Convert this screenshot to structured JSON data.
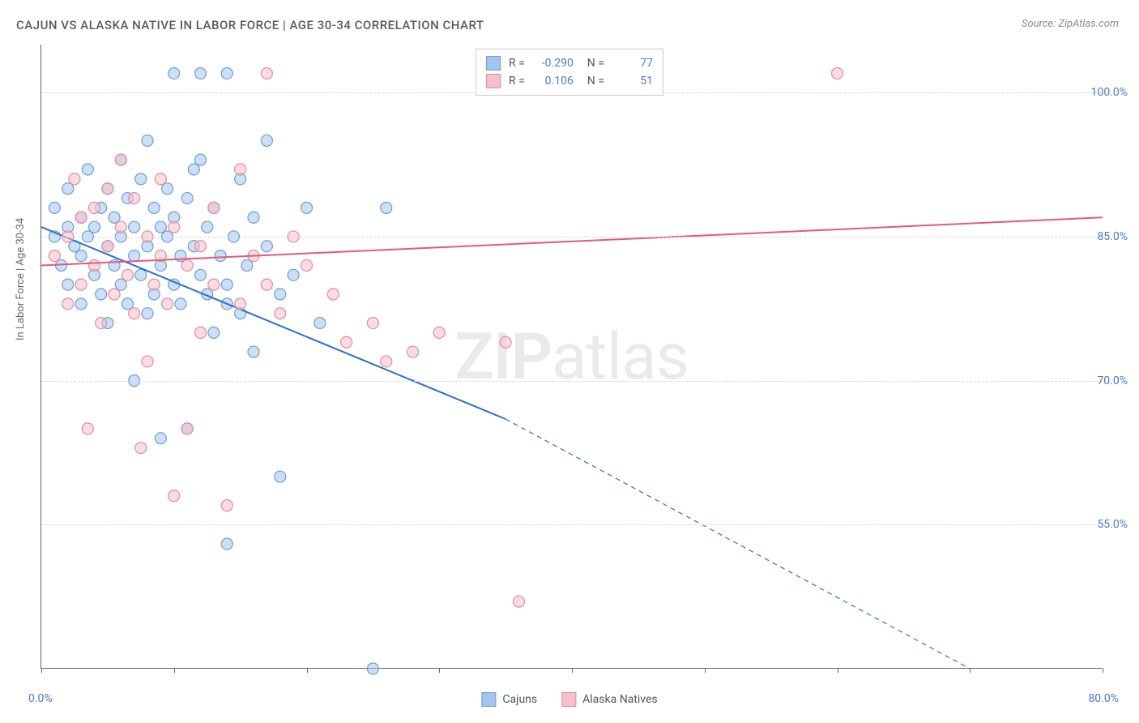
{
  "title": "CAJUN VS ALASKA NATIVE IN LABOR FORCE | AGE 30-34 CORRELATION CHART",
  "source": "Source: ZipAtlas.com",
  "ylabel": "In Labor Force | Age 30-34",
  "watermark_bold": "ZIP",
  "watermark_rest": "atlas",
  "chart": {
    "type": "scatter-with-trend",
    "xlim": [
      0,
      80
    ],
    "ylim": [
      40,
      105
    ],
    "x_ticks": [
      0,
      10,
      20,
      30,
      40,
      50,
      60,
      70,
      80
    ],
    "y_gridlines": [
      55,
      70,
      85,
      100
    ],
    "y_tick_labels": [
      "55.0%",
      "70.0%",
      "85.0%",
      "100.0%"
    ],
    "x_tick_labels": {
      "left": "0.0%",
      "right": "80.0%"
    },
    "background_color": "#ffffff",
    "grid_color": "#d8d8d8",
    "axis_color": "#666666",
    "label_color": "#4a7bc8",
    "marker_radius": 7,
    "marker_opacity": 0.55,
    "line_width": 2,
    "series": [
      {
        "name": "Cajuns",
        "color_fill": "#a3c5ed",
        "color_stroke": "#6a9fd8",
        "trend_color": "#2e6fc9",
        "R": "-0.290",
        "N": "77",
        "trend_start": {
          "x": 0,
          "y": 86
        },
        "trend_solid_end": {
          "x": 35,
          "y": 66
        },
        "trend_end": {
          "x": 70,
          "y": 40
        },
        "points": [
          [
            1,
            85
          ],
          [
            1,
            88
          ],
          [
            1.5,
            82
          ],
          [
            2,
            86
          ],
          [
            2,
            80
          ],
          [
            2,
            90
          ],
          [
            2.5,
            84
          ],
          [
            3,
            83
          ],
          [
            3,
            87
          ],
          [
            3,
            78
          ],
          [
            3.5,
            85
          ],
          [
            3.5,
            92
          ],
          [
            4,
            81
          ],
          [
            4,
            86
          ],
          [
            4.5,
            79
          ],
          [
            4.5,
            88
          ],
          [
            5,
            84
          ],
          [
            5,
            90
          ],
          [
            5,
            76
          ],
          [
            5.5,
            82
          ],
          [
            5.5,
            87
          ],
          [
            6,
            85
          ],
          [
            6,
            80
          ],
          [
            6,
            93
          ],
          [
            6.5,
            78
          ],
          [
            6.5,
            89
          ],
          [
            7,
            83
          ],
          [
            7,
            86
          ],
          [
            7,
            70
          ],
          [
            7.5,
            81
          ],
          [
            7.5,
            91
          ],
          [
            8,
            84
          ],
          [
            8,
            77
          ],
          [
            8,
            95
          ],
          [
            8.5,
            79
          ],
          [
            8.5,
            88
          ],
          [
            9,
            82
          ],
          [
            9,
            86
          ],
          [
            9,
            64
          ],
          [
            9.5,
            85
          ],
          [
            9.5,
            90
          ],
          [
            10,
            80
          ],
          [
            10,
            102
          ],
          [
            10,
            87
          ],
          [
            10.5,
            83
          ],
          [
            10.5,
            78
          ],
          [
            11,
            89
          ],
          [
            11,
            65
          ],
          [
            11.5,
            84
          ],
          [
            11.5,
            92
          ],
          [
            12,
            81
          ],
          [
            12,
            102
          ],
          [
            12.5,
            86
          ],
          [
            12.5,
            79
          ],
          [
            13,
            88
          ],
          [
            13,
            75
          ],
          [
            13.5,
            83
          ],
          [
            14,
            102
          ],
          [
            14,
            80
          ],
          [
            14,
            53
          ],
          [
            14.5,
            85
          ],
          [
            15,
            91
          ],
          [
            15,
            77
          ],
          [
            15.5,
            82
          ],
          [
            16,
            87
          ],
          [
            16,
            73
          ],
          [
            17,
            84
          ],
          [
            17,
            95
          ],
          [
            18,
            60
          ],
          [
            18,
            79
          ],
          [
            19,
            81
          ],
          [
            20,
            88
          ],
          [
            21,
            76
          ],
          [
            25,
            40
          ],
          [
            26,
            88
          ],
          [
            14,
            78
          ],
          [
            12,
            93
          ]
        ]
      },
      {
        "name": "Alaska Natives",
        "color_fill": "#f5c0cb",
        "color_stroke": "#e68a9e",
        "trend_color": "#e35a7a",
        "R": "0.106",
        "N": "51",
        "trend_start": {
          "x": 0,
          "y": 82
        },
        "trend_solid_end": {
          "x": 80,
          "y": 87
        },
        "trend_end": {
          "x": 80,
          "y": 87
        },
        "points": [
          [
            1,
            83
          ],
          [
            2,
            85
          ],
          [
            2,
            78
          ],
          [
            2.5,
            91
          ],
          [
            3,
            80
          ],
          [
            3,
            87
          ],
          [
            3.5,
            65
          ],
          [
            4,
            82
          ],
          [
            4,
            88
          ],
          [
            4.5,
            76
          ],
          [
            5,
            90
          ],
          [
            5,
            84
          ],
          [
            5.5,
            79
          ],
          [
            6,
            86
          ],
          [
            6,
            93
          ],
          [
            6.5,
            81
          ],
          [
            7,
            77
          ],
          [
            7,
            89
          ],
          [
            7.5,
            63
          ],
          [
            8,
            85
          ],
          [
            8,
            72
          ],
          [
            8.5,
            80
          ],
          [
            9,
            91
          ],
          [
            9,
            83
          ],
          [
            9.5,
            78
          ],
          [
            10,
            86
          ],
          [
            10,
            58
          ],
          [
            11,
            82
          ],
          [
            11,
            65
          ],
          [
            12,
            84
          ],
          [
            12,
            75
          ],
          [
            13,
            80
          ],
          [
            13,
            88
          ],
          [
            14,
            57
          ],
          [
            15,
            78
          ],
          [
            15,
            92
          ],
          [
            16,
            83
          ],
          [
            17,
            80
          ],
          [
            17,
            102
          ],
          [
            18,
            77
          ],
          [
            19,
            85
          ],
          [
            20,
            82
          ],
          [
            22,
            79
          ],
          [
            23,
            74
          ],
          [
            25,
            76
          ],
          [
            26,
            72
          ],
          [
            28,
            73
          ],
          [
            30,
            75
          ],
          [
            35,
            74
          ],
          [
            36,
            47
          ],
          [
            60,
            102
          ]
        ]
      }
    ]
  },
  "legend_bottom": [
    {
      "label": "Cajuns"
    },
    {
      "label": "Alaska Natives"
    }
  ]
}
